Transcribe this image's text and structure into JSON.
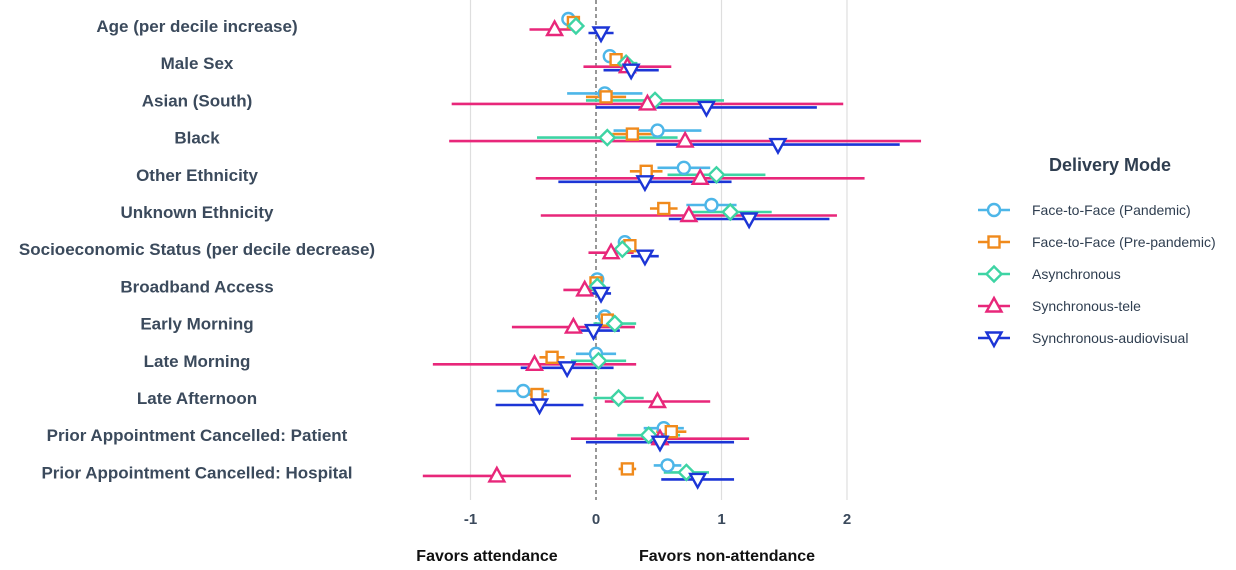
{
  "chart_data": {
    "type": "forest",
    "xlim": [
      -1.5,
      2.6
    ],
    "xticks": [
      -1,
      0,
      1,
      2
    ],
    "xtick_labels": [
      "-1",
      "0",
      "1",
      "2"
    ],
    "reference_line": 0,
    "grid": "vertical",
    "x_annotations": {
      "left": "Favors attendance",
      "right": "Favors non-attendance"
    },
    "categories": [
      "Age (per decile increase)",
      "Male Sex",
      "Asian (South)",
      "Black",
      "Other Ethnicity",
      "Unknown Ethnicity",
      "Socioeconomic Status (per decile decrease)",
      "Broadband Access",
      "Early Morning",
      "Late Morning",
      "Late Afternoon",
      "Prior Appointment Cancelled: Patient",
      "Prior Appointment Cancelled: Hospital"
    ],
    "legend": {
      "title": "Delivery Mode",
      "placement": "right"
    },
    "series": [
      {
        "name": "Face-to-Face (Pandemic)",
        "color": "#4db6e8",
        "marker": "circle",
        "points": [
          {
            "est": -0.22,
            "lo": -0.27,
            "hi": -0.17
          },
          {
            "est": 0.11,
            "lo": 0.06,
            "hi": 0.16
          },
          {
            "est": 0.07,
            "lo": -0.23,
            "hi": 0.37
          },
          {
            "est": 0.49,
            "lo": 0.14,
            "hi": 0.84
          },
          {
            "est": 0.7,
            "lo": 0.49,
            "hi": 0.91
          },
          {
            "est": 0.92,
            "lo": 0.72,
            "hi": 1.12
          },
          {
            "est": 0.23,
            "lo": 0.19,
            "hi": 0.27
          },
          {
            "est": 0.01,
            "lo": -0.02,
            "hi": 0.04
          },
          {
            "est": 0.07,
            "lo": 0.0,
            "hi": 0.14
          },
          {
            "est": 0.0,
            "lo": -0.16,
            "hi": 0.16
          },
          {
            "est": -0.58,
            "lo": -0.79,
            "hi": -0.37
          },
          {
            "est": 0.54,
            "lo": 0.38,
            "hi": 0.7
          },
          {
            "est": 0.57,
            "lo": 0.46,
            "hi": 0.68
          }
        ]
      },
      {
        "name": "Face-to-Face (Pre-pandemic)",
        "color": "#f08a1c",
        "marker": "square",
        "points": [
          {
            "est": -0.18,
            "lo": -0.22,
            "hi": -0.14
          },
          {
            "est": 0.16,
            "lo": 0.11,
            "hi": 0.21
          },
          {
            "est": 0.08,
            "lo": -0.08,
            "hi": 0.24
          },
          {
            "est": 0.29,
            "lo": 0.13,
            "hi": 0.45
          },
          {
            "est": 0.4,
            "lo": 0.27,
            "hi": 0.53
          },
          {
            "est": 0.54,
            "lo": 0.43,
            "hi": 0.65
          },
          {
            "est": 0.27,
            "lo": 0.24,
            "hi": 0.3
          },
          {
            "est": 0.0,
            "lo": -0.03,
            "hi": 0.03
          },
          {
            "est": 0.09,
            "lo": 0.03,
            "hi": 0.15
          },
          {
            "est": -0.35,
            "lo": -0.45,
            "hi": -0.25
          },
          {
            "est": -0.47,
            "lo": -0.55,
            "hi": -0.39
          },
          {
            "est": 0.6,
            "lo": 0.48,
            "hi": 0.72
          },
          {
            "est": 0.25,
            "lo": 0.18,
            "hi": 0.32
          }
        ]
      },
      {
        "name": "Asynchronous",
        "color": "#3ed4a4",
        "marker": "diamond",
        "points": [
          {
            "est": -0.16,
            "lo": -0.2,
            "hi": -0.12
          },
          {
            "est": 0.24,
            "lo": 0.15,
            "hi": 0.33
          },
          {
            "est": 0.47,
            "lo": -0.08,
            "hi": 1.02
          },
          {
            "est": 0.09,
            "lo": -0.47,
            "hi": 0.65
          },
          {
            "est": 0.96,
            "lo": 0.57,
            "hi": 1.35
          },
          {
            "est": 1.07,
            "lo": 0.74,
            "hi": 1.4
          },
          {
            "est": 0.21,
            "lo": 0.15,
            "hi": 0.27
          },
          {
            "est": 0.01,
            "lo": -0.05,
            "hi": 0.07
          },
          {
            "est": 0.15,
            "lo": -0.02,
            "hi": 0.32
          },
          {
            "est": 0.02,
            "lo": -0.2,
            "hi": 0.24
          },
          {
            "est": 0.18,
            "lo": -0.02,
            "hi": 0.38
          },
          {
            "est": 0.42,
            "lo": 0.17,
            "hi": 0.67
          },
          {
            "est": 0.72,
            "lo": 0.54,
            "hi": 0.9
          }
        ]
      },
      {
        "name": "Synchronous-tele",
        "color": "#e8277a",
        "marker": "triangle-up",
        "points": [
          {
            "est": -0.33,
            "lo": -0.53,
            "hi": -0.13
          },
          {
            "est": 0.25,
            "lo": -0.1,
            "hi": 0.6
          },
          {
            "est": 0.41,
            "lo": -1.15,
            "hi": 1.97
          },
          {
            "est": 0.71,
            "lo": -1.17,
            "hi": 2.59
          },
          {
            "est": 0.83,
            "lo": -0.48,
            "hi": 2.14
          },
          {
            "est": 0.74,
            "lo": -0.44,
            "hi": 1.92
          },
          {
            "est": 0.12,
            "lo": -0.06,
            "hi": 0.3
          },
          {
            "est": -0.09,
            "lo": -0.26,
            "hi": 0.08
          },
          {
            "est": -0.18,
            "lo": -0.67,
            "hi": 0.31
          },
          {
            "est": -0.49,
            "lo": -1.3,
            "hi": 0.32
          },
          {
            "est": 0.49,
            "lo": 0.07,
            "hi": 0.91
          },
          {
            "est": 0.51,
            "lo": -0.2,
            "hi": 1.22
          },
          {
            "est": -0.79,
            "lo": -1.38,
            "hi": -0.2
          }
        ]
      },
      {
        "name": "Synchronous-audiovisual",
        "color": "#1c35d6",
        "marker": "triangle-down",
        "points": [
          {
            "est": 0.04,
            "lo": -0.06,
            "hi": 0.14
          },
          {
            "est": 0.28,
            "lo": 0.06,
            "hi": 0.5
          },
          {
            "est": 0.88,
            "lo": 0.0,
            "hi": 1.76
          },
          {
            "est": 1.45,
            "lo": 0.48,
            "hi": 2.42
          },
          {
            "est": 0.39,
            "lo": -0.3,
            "hi": 1.08
          },
          {
            "est": 1.22,
            "lo": 0.58,
            "hi": 1.86
          },
          {
            "est": 0.39,
            "lo": 0.28,
            "hi": 0.5
          },
          {
            "est": 0.04,
            "lo": -0.04,
            "hi": 0.12
          },
          {
            "est": -0.02,
            "lo": -0.23,
            "hi": 0.19
          },
          {
            "est": -0.23,
            "lo": -0.6,
            "hi": 0.14
          },
          {
            "est": -0.45,
            "lo": -0.8,
            "hi": -0.1
          },
          {
            "est": 0.51,
            "lo": -0.08,
            "hi": 1.1
          },
          {
            "est": 0.81,
            "lo": 0.52,
            "hi": 1.1
          }
        ]
      }
    ]
  }
}
